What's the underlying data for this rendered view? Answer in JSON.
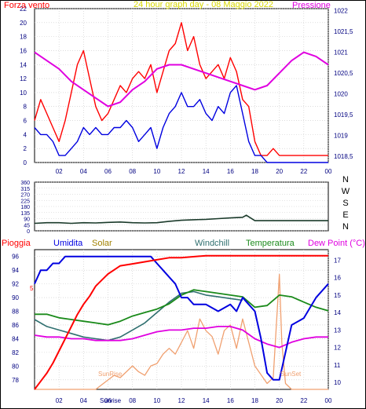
{
  "colors": {
    "frame": "#000000",
    "tick": "#000080",
    "grid": "#c8c8c8",
    "wind_gust": "#ff0000",
    "wind_avg": "#0000e0",
    "pressure": "#e000e0",
    "title": "#d8d800",
    "direction": "#1a3a2a",
    "humidity": "#0000e0",
    "rain": "#ff0000",
    "solar": "#f0a070",
    "windchill": "#2f6f6f",
    "temperature": "#1a8a1a",
    "dewpoint": "#e000e0",
    "solar_label": "#a08000",
    "windchill_label": "#2f6f6f"
  },
  "chart_data": [
    {
      "type": "line",
      "title": "24 hour graph day - 08 Maggio 2022",
      "ylabel": "Forza vento",
      "y2label": "Pressione",
      "x_ticks": [
        "02",
        "04",
        "06",
        "08",
        "10",
        "12",
        "14",
        "16",
        "18",
        "20",
        "22",
        "00"
      ],
      "xlim": [
        0,
        24
      ],
      "ylim": [
        0,
        22
      ],
      "y_ticks": [
        0,
        2,
        4,
        6,
        8,
        10,
        12,
        14,
        16,
        18,
        20,
        22
      ],
      "y2lim": [
        1018.35,
        1022.05
      ],
      "y2_ticks": [
        "1018,5",
        "1019",
        "1019,5",
        "1020",
        "1020,5",
        "1021",
        "1021,5",
        "1022"
      ],
      "y2_tick_values": [
        1018.5,
        1019,
        1019.5,
        1020,
        1020.5,
        1021,
        1021.5,
        1022
      ],
      "series": [
        {
          "name": "wind_gust",
          "x": [
            0,
            0.5,
            1,
            1.5,
            2,
            2.5,
            3,
            3.5,
            4,
            4.5,
            5,
            5.5,
            6,
            6.5,
            7,
            7.5,
            8,
            8.5,
            9,
            9.5,
            10,
            10.5,
            11,
            11.5,
            12,
            12.5,
            13,
            13.5,
            14,
            14.5,
            15,
            15.5,
            16,
            16.5,
            17,
            17.5,
            18,
            18.5,
            19,
            19.5,
            20,
            21,
            22,
            23,
            24
          ],
          "y": [
            6,
            9,
            7,
            5,
            3,
            6,
            10,
            14,
            16,
            12,
            8,
            6,
            7,
            9,
            11,
            10,
            12,
            13,
            12,
            14,
            10,
            13,
            16,
            17,
            20,
            16,
            18,
            14,
            12,
            13,
            14,
            12,
            15,
            13,
            9,
            8,
            3,
            1,
            1,
            2,
            1,
            1,
            1,
            1,
            1
          ]
        },
        {
          "name": "wind_avg",
          "x": [
            0,
            0.5,
            1,
            1.5,
            2,
            2.5,
            3,
            3.5,
            4,
            4.5,
            5,
            5.5,
            6,
            6.5,
            7,
            7.5,
            8,
            8.5,
            9,
            9.5,
            10,
            10.5,
            11,
            11.5,
            12,
            12.5,
            13,
            13.5,
            14,
            14.5,
            15,
            15.5,
            16,
            16.5,
            17,
            17.5,
            18,
            18.5,
            19,
            24
          ],
          "y": [
            5,
            4,
            4,
            3,
            1,
            1,
            2,
            3,
            5,
            4,
            5,
            4,
            4,
            5,
            5,
            6,
            5,
            3,
            4,
            5,
            2,
            5,
            7,
            8,
            10,
            8,
            8,
            9,
            7,
            6,
            8,
            7,
            10,
            11,
            7,
            3,
            1,
            1,
            0,
            0
          ]
        },
        {
          "name": "pressure",
          "x": [
            0,
            1,
            2,
            3,
            4,
            5,
            6,
            7,
            8,
            9,
            10,
            11,
            12,
            13,
            14,
            15,
            16,
            17,
            18,
            19,
            20,
            21,
            22,
            23,
            24
          ],
          "y": [
            1021.0,
            1020.8,
            1020.6,
            1020.3,
            1020.1,
            1019.9,
            1019.7,
            1019.8,
            1020.1,
            1020.3,
            1020.6,
            1020.7,
            1020.7,
            1020.6,
            1020.5,
            1020.4,
            1020.3,
            1020.2,
            1020.1,
            1020.2,
            1020.5,
            1020.8,
            1021.0,
            1020.9,
            1020.7
          ]
        }
      ]
    },
    {
      "type": "line",
      "ylabel_right": [
        "N",
        "W",
        "S",
        "E",
        "N"
      ],
      "ylim": [
        0,
        360
      ],
      "y_ticks": [
        0,
        45,
        90,
        135,
        180,
        225,
        270,
        315,
        360
      ],
      "xlim": [
        0,
        24
      ],
      "series": [
        {
          "name": "wind_direction",
          "x": [
            0,
            1,
            2,
            3,
            4,
            5,
            6,
            7,
            8,
            9,
            10,
            11,
            12,
            13,
            14,
            15,
            16,
            17,
            17.3,
            18,
            19,
            20,
            21,
            22,
            23,
            24
          ],
          "y": [
            55,
            60,
            60,
            55,
            60,
            58,
            62,
            65,
            60,
            58,
            60,
            70,
            78,
            82,
            85,
            90,
            95,
            100,
            115,
            75,
            75,
            75,
            75,
            75,
            75,
            75
          ]
        }
      ]
    },
    {
      "type": "line",
      "series_labels": [
        "Pioggia",
        "Umidita",
        "Solar",
        "Windchill",
        "Temperatura",
        "Dew Point (°C)"
      ],
      "xlim": [
        0,
        24
      ],
      "x_ticks": [
        "02",
        "04",
        "06",
        "08",
        "10",
        "12",
        "14",
        "16",
        "18",
        "20",
        "22",
        "00"
      ],
      "humidity_ylim": [
        76.6,
        97
      ],
      "humidity_ticks": [
        78,
        80,
        82,
        84,
        86,
        88,
        90,
        92,
        94,
        96
      ],
      "temp_ylim": [
        9.6,
        17.6
      ],
      "temp_ticks": [
        10,
        11,
        12,
        13,
        14,
        15,
        16,
        17
      ],
      "rain_tick": "5",
      "rain_ylim": [
        0,
        6.9
      ],
      "annotations": [
        "SunRise",
        "Sunrise",
        "SunSet"
      ],
      "series": [
        {
          "name": "humidity",
          "x": [
            0,
            0.5,
            1,
            1.5,
            2,
            2.5,
            3,
            3.5,
            4,
            5,
            6,
            7,
            8,
            9,
            9.5,
            10,
            10.5,
            11,
            11.5,
            12,
            12.5,
            13,
            14,
            15,
            16,
            16.5,
            17,
            17.5,
            18,
            18.5,
            19,
            19.5,
            20,
            20.5,
            21,
            22,
            23,
            24
          ],
          "y": [
            92,
            94,
            94,
            95,
            95,
            96,
            96,
            96,
            96,
            96,
            96,
            96,
            96,
            96,
            96,
            95,
            94,
            93,
            92,
            90,
            90,
            89,
            89,
            88,
            89,
            88,
            90,
            89,
            88,
            84,
            79,
            78,
            78,
            82,
            86,
            87,
            90,
            92
          ]
        },
        {
          "name": "rain",
          "x": [
            0,
            0.5,
            1,
            1.5,
            2,
            2.5,
            3,
            3.5,
            4,
            4.5,
            5,
            5.5,
            6,
            6.5,
            7,
            8,
            9,
            10,
            11,
            12,
            14,
            16,
            18,
            20,
            24
          ],
          "y": [
            0,
            0.4,
            0.8,
            1.3,
            1.9,
            2.5,
            3.1,
            3.7,
            4.2,
            4.6,
            5.1,
            5.4,
            5.7,
            5.9,
            6.1,
            6.2,
            6.3,
            6.4,
            6.5,
            6.5,
            6.6,
            6.6,
            6.6,
            6.6,
            6.6
          ]
        },
        {
          "name": "temperature",
          "x": [
            0,
            1,
            2,
            3,
            4,
            5,
            6,
            7,
            8,
            9,
            10,
            11,
            12,
            13,
            14,
            15,
            16,
            17,
            18,
            19,
            20,
            21,
            22,
            23,
            24
          ],
          "y": [
            13.9,
            13.9,
            13.7,
            13.6,
            13.5,
            13.4,
            13.3,
            13.5,
            13.8,
            14.0,
            14.2,
            14.5,
            15.0,
            15.3,
            15.2,
            15.1,
            15.0,
            14.9,
            14.3,
            14.4,
            15.0,
            14.9,
            14.6,
            14.3,
            14.1
          ]
        },
        {
          "name": "windchill",
          "x": [
            0,
            1,
            2,
            3,
            4,
            5,
            6,
            7,
            8,
            9,
            10,
            11,
            12,
            13,
            14,
            15,
            16,
            17
          ],
          "y": [
            13.6,
            13.2,
            13.0,
            12.8,
            12.6,
            12.5,
            12.4,
            12.6,
            13.0,
            13.4,
            14.0,
            14.6,
            15.1,
            15.2,
            15.0,
            14.9,
            14.8,
            14.7
          ]
        },
        {
          "name": "dewpoint",
          "x": [
            0,
            1,
            2,
            3,
            4,
            5,
            6,
            7,
            8,
            9,
            10,
            11,
            12,
            13,
            14,
            15,
            16,
            17,
            18,
            19,
            20,
            21,
            22,
            23,
            24
          ],
          "y": [
            12.7,
            12.6,
            12.6,
            12.5,
            12.5,
            12.4,
            12.4,
            12.4,
            12.5,
            12.7,
            12.9,
            13.0,
            13.0,
            13.1,
            13.1,
            13.2,
            13.2,
            13.0,
            12.5,
            12.2,
            12.0,
            12.3,
            12.5,
            12.6,
            12.6
          ]
        },
        {
          "name": "solar",
          "x": [
            0,
            5,
            6,
            6.5,
            7,
            7.5,
            8,
            8.5,
            9,
            9.5,
            10,
            10.5,
            11,
            11.5,
            12,
            12.5,
            13,
            13.5,
            14,
            14.5,
            15,
            15.5,
            16,
            16.5,
            17,
            17.5,
            18,
            19,
            19.5,
            20,
            20.2,
            20.5,
            21,
            24
          ],
          "y": [
            0,
            0,
            0.08,
            0.12,
            0.1,
            0.15,
            0.2,
            0.15,
            0.12,
            0.2,
            0.22,
            0.3,
            0.35,
            0.3,
            0.4,
            0.5,
            0.35,
            0.6,
            0.5,
            0.45,
            0.3,
            0.5,
            0.55,
            0.35,
            0.6,
            0.4,
            0.2,
            0.05,
            0.1,
            0.98,
            0.4,
            0.05,
            0,
            0
          ]
        }
      ]
    }
  ]
}
